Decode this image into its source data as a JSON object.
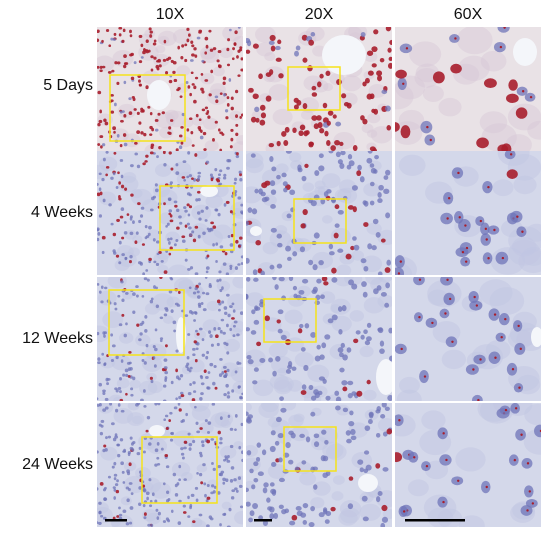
{
  "columns": [
    "10X",
    "20X",
    "60X"
  ],
  "rows": [
    "5 Days",
    "4 Weeks",
    "12 Weeks",
    "24 Weeks"
  ],
  "colors": {
    "background_early": "#e9e2e6",
    "background_late": "#d4d8ea",
    "stain_red": "#a81e2c",
    "stain_blue": "#6f74b8",
    "inset_box": "#f5e21b",
    "vessel": "#f4f6fa",
    "scale_bar": "#000000"
  },
  "panels": [
    [
      {
        "red": 0.9
      },
      {
        "red": 0.85
      },
      {
        "red": 0.55
      }
    ],
    [
      {
        "red": 0.25
      },
      {
        "red": 0.18
      },
      {
        "red": 0.15
      }
    ],
    [
      {
        "red": 0.12
      },
      {
        "red": 0.1
      },
      {
        "red": 0.05
      }
    ],
    [
      {
        "red": 0.1
      },
      {
        "red": 0.08
      },
      {
        "red": 0.12
      }
    ]
  ]
}
